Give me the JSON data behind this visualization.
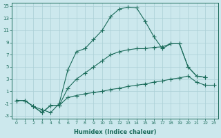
{
  "xlabel": "Humidex (Indice chaleur)",
  "bg_color": "#cce8ed",
  "grid_color": "#aacfd6",
  "line_color": "#1a6b5a",
  "xlim": [
    0,
    23
  ],
  "ylim": [
    -3,
    15
  ],
  "xticks": [
    0,
    1,
    2,
    3,
    4,
    5,
    6,
    7,
    8,
    9,
    10,
    11,
    12,
    13,
    14,
    15,
    16,
    17,
    18,
    19,
    20,
    21,
    22,
    23
  ],
  "yticks": [
    -3,
    -1,
    1,
    3,
    5,
    7,
    9,
    11,
    13,
    15
  ],
  "line1_x": [
    0,
    1,
    2,
    3,
    4,
    5,
    6,
    7,
    8,
    9,
    10,
    11,
    12,
    13,
    14,
    15,
    16,
    17,
    18,
    19,
    20,
    21,
    22
  ],
  "line1_y": [
    -0.5,
    -0.5,
    -1.5,
    -2.0,
    -2.5,
    -1.0,
    4.5,
    7.5,
    8.0,
    9.5,
    11.0,
    13.3,
    14.5,
    14.8,
    14.7,
    12.5,
    10.0,
    8.0,
    8.8,
    8.8,
    5.0,
    3.5,
    3.3
  ],
  "line2_x": [
    0,
    1,
    2,
    3,
    4,
    5,
    6,
    7,
    8,
    9,
    10,
    11,
    12,
    13,
    14,
    15,
    16,
    17,
    18,
    19,
    20,
    21,
    22
  ],
  "line2_y": [
    -0.5,
    -0.5,
    -1.5,
    -2.5,
    -1.3,
    -1.3,
    1.5,
    3.0,
    4.0,
    5.0,
    6.0,
    7.0,
    7.5,
    7.8,
    8.0,
    8.0,
    8.2,
    8.3,
    8.8,
    8.8,
    5.0,
    3.5,
    3.3
  ],
  "line3_x": [
    0,
    1,
    2,
    3,
    4,
    5,
    6,
    7,
    8,
    9,
    10,
    11,
    12,
    13,
    14,
    15,
    16,
    17,
    18,
    19,
    20,
    21,
    22,
    23
  ],
  "line3_y": [
    -0.5,
    -0.5,
    -1.5,
    -2.5,
    -1.3,
    -1.3,
    0.0,
    0.3,
    0.6,
    0.8,
    1.0,
    1.3,
    1.5,
    1.8,
    2.0,
    2.2,
    2.5,
    2.7,
    3.0,
    3.2,
    3.5,
    2.5,
    2.0,
    2.0
  ]
}
